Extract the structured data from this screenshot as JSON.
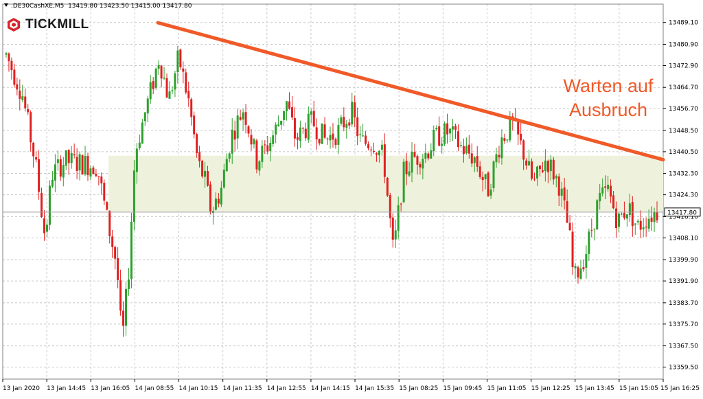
{
  "header": {
    "symbol": ".DE30CashXE,M5",
    "ohlc": "13419.80 13423.50 13415.00 13417.80"
  },
  "brand": {
    "name": "TICKMILL"
  },
  "annotation": {
    "line1": "Warten auf",
    "line2": "Ausbruch"
  },
  "colors": {
    "bull": "#2ca02c",
    "bear": "#e02020",
    "trendline": "#f05a28",
    "zone": "#eef2dc",
    "grid": "#c8c8c8",
    "brand_red": "#d7262b"
  },
  "chart_data": {
    "type": "candlestick",
    "instrument": ".DE30CashXE,M5",
    "ylim": [
      13355.0,
      13496.0
    ],
    "yticks": [
      "13489.10",
      "13480.90",
      "13472.90",
      "13464.70",
      "13456.70",
      "13448.50",
      "13440.50",
      "13432.30",
      "13424.30",
      "13416.10",
      "13408.10",
      "13399.90",
      "13391.90",
      "13383.70",
      "13375.70",
      "13367.50",
      "13359.50"
    ],
    "xticks": [
      "13 Jan 2020",
      "13 Jan 14:45",
      "13 Jan 16:05",
      "14 Jan 08:55",
      "14 Jan 10:15",
      "14 Jan 11:35",
      "14 Jan 12:55",
      "14 Jan 14:15",
      "14 Jan 15:35",
      "15 Jan 08:25",
      "15 Jan 09:45",
      "15 Jan 11:05",
      "15 Jan 12:25",
      "15 Jan 13:45",
      "15 Jan 15:05",
      "15 Jan 16:25"
    ],
    "current_price": "13417.80",
    "resistance_zone": [
      13418.0,
      13439.0
    ],
    "trendline": {
      "from": [
        0.235,
        13489.0
      ],
      "to": [
        1.0,
        13437.5
      ]
    },
    "anchors": [
      [
        0.0,
        13477
      ],
      [
        0.025,
        13462
      ],
      [
        0.045,
        13436
      ],
      [
        0.06,
        13408
      ],
      [
        0.07,
        13432
      ],
      [
        0.09,
        13437
      ],
      [
        0.12,
        13436
      ],
      [
        0.14,
        13435
      ],
      [
        0.155,
        13415
      ],
      [
        0.17,
        13398
      ],
      [
        0.178,
        13368
      ],
      [
        0.188,
        13395
      ],
      [
        0.198,
        13440
      ],
      [
        0.21,
        13452
      ],
      [
        0.225,
        13466
      ],
      [
        0.235,
        13476
      ],
      [
        0.25,
        13460
      ],
      [
        0.265,
        13476
      ],
      [
        0.28,
        13460
      ],
      [
        0.295,
        13436
      ],
      [
        0.305,
        13430
      ],
      [
        0.315,
        13418
      ],
      [
        0.33,
        13426
      ],
      [
        0.345,
        13446
      ],
      [
        0.365,
        13457
      ],
      [
        0.385,
        13437
      ],
      [
        0.405,
        13444
      ],
      [
        0.42,
        13452
      ],
      [
        0.43,
        13460
      ],
      [
        0.445,
        13445
      ],
      [
        0.47,
        13452
      ],
      [
        0.49,
        13445
      ],
      [
        0.51,
        13448
      ],
      [
        0.53,
        13456
      ],
      [
        0.545,
        13444
      ],
      [
        0.565,
        13444
      ],
      [
        0.58,
        13438
      ],
      [
        0.595,
        13402
      ],
      [
        0.61,
        13432
      ],
      [
        0.625,
        13438
      ],
      [
        0.645,
        13440
      ],
      [
        0.66,
        13446
      ],
      [
        0.68,
        13448
      ],
      [
        0.7,
        13442
      ],
      [
        0.72,
        13438
      ],
      [
        0.74,
        13426
      ],
      [
        0.76,
        13445
      ],
      [
        0.778,
        13451
      ],
      [
        0.795,
        13440
      ],
      [
        0.81,
        13428
      ],
      [
        0.83,
        13438
      ],
      [
        0.85,
        13428
      ],
      [
        0.865,
        13410
      ],
      [
        0.872,
        13392
      ],
      [
        0.89,
        13402
      ],
      [
        0.91,
        13422
      ],
      [
        0.925,
        13426
      ],
      [
        0.94,
        13414
      ],
      [
        0.955,
        13420
      ],
      [
        0.97,
        13412
      ],
      [
        0.985,
        13416
      ],
      [
        1.0,
        13418
      ]
    ]
  }
}
